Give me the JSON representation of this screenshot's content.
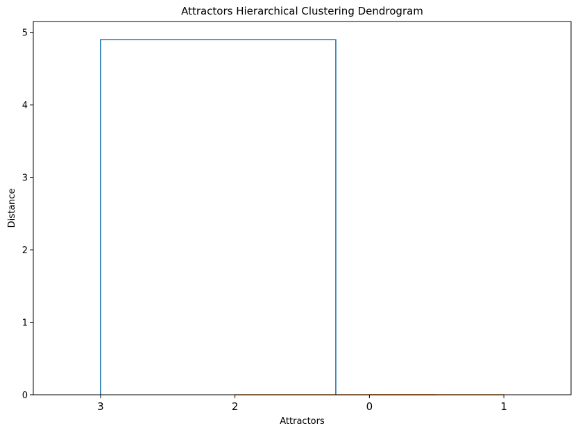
{
  "chart_data": {
    "type": "dendrogram",
    "title": "Attractors Hierarchical Clustering Dendrogram",
    "xlabel": "Attractors",
    "ylabel": "Distance",
    "leaf_order": [
      "3",
      "2",
      "0",
      "1"
    ],
    "ylim": [
      0,
      5.15
    ],
    "yticks": [
      0,
      1,
      2,
      3,
      4,
      5
    ],
    "ytick_labels": [
      "0",
      "1",
      "2",
      "3",
      "4",
      "5"
    ],
    "grid": false,
    "links": [
      {
        "left": "0",
        "right": "1",
        "height": 0.0,
        "color": "#ff7f0e"
      },
      {
        "left": "2",
        "right": "(0,1)",
        "height": 0.0,
        "color": "#ff7f0e"
      },
      {
        "left": "3",
        "right": "(2,0,1)",
        "height": 4.9,
        "color": "#1f77b4"
      }
    ]
  }
}
